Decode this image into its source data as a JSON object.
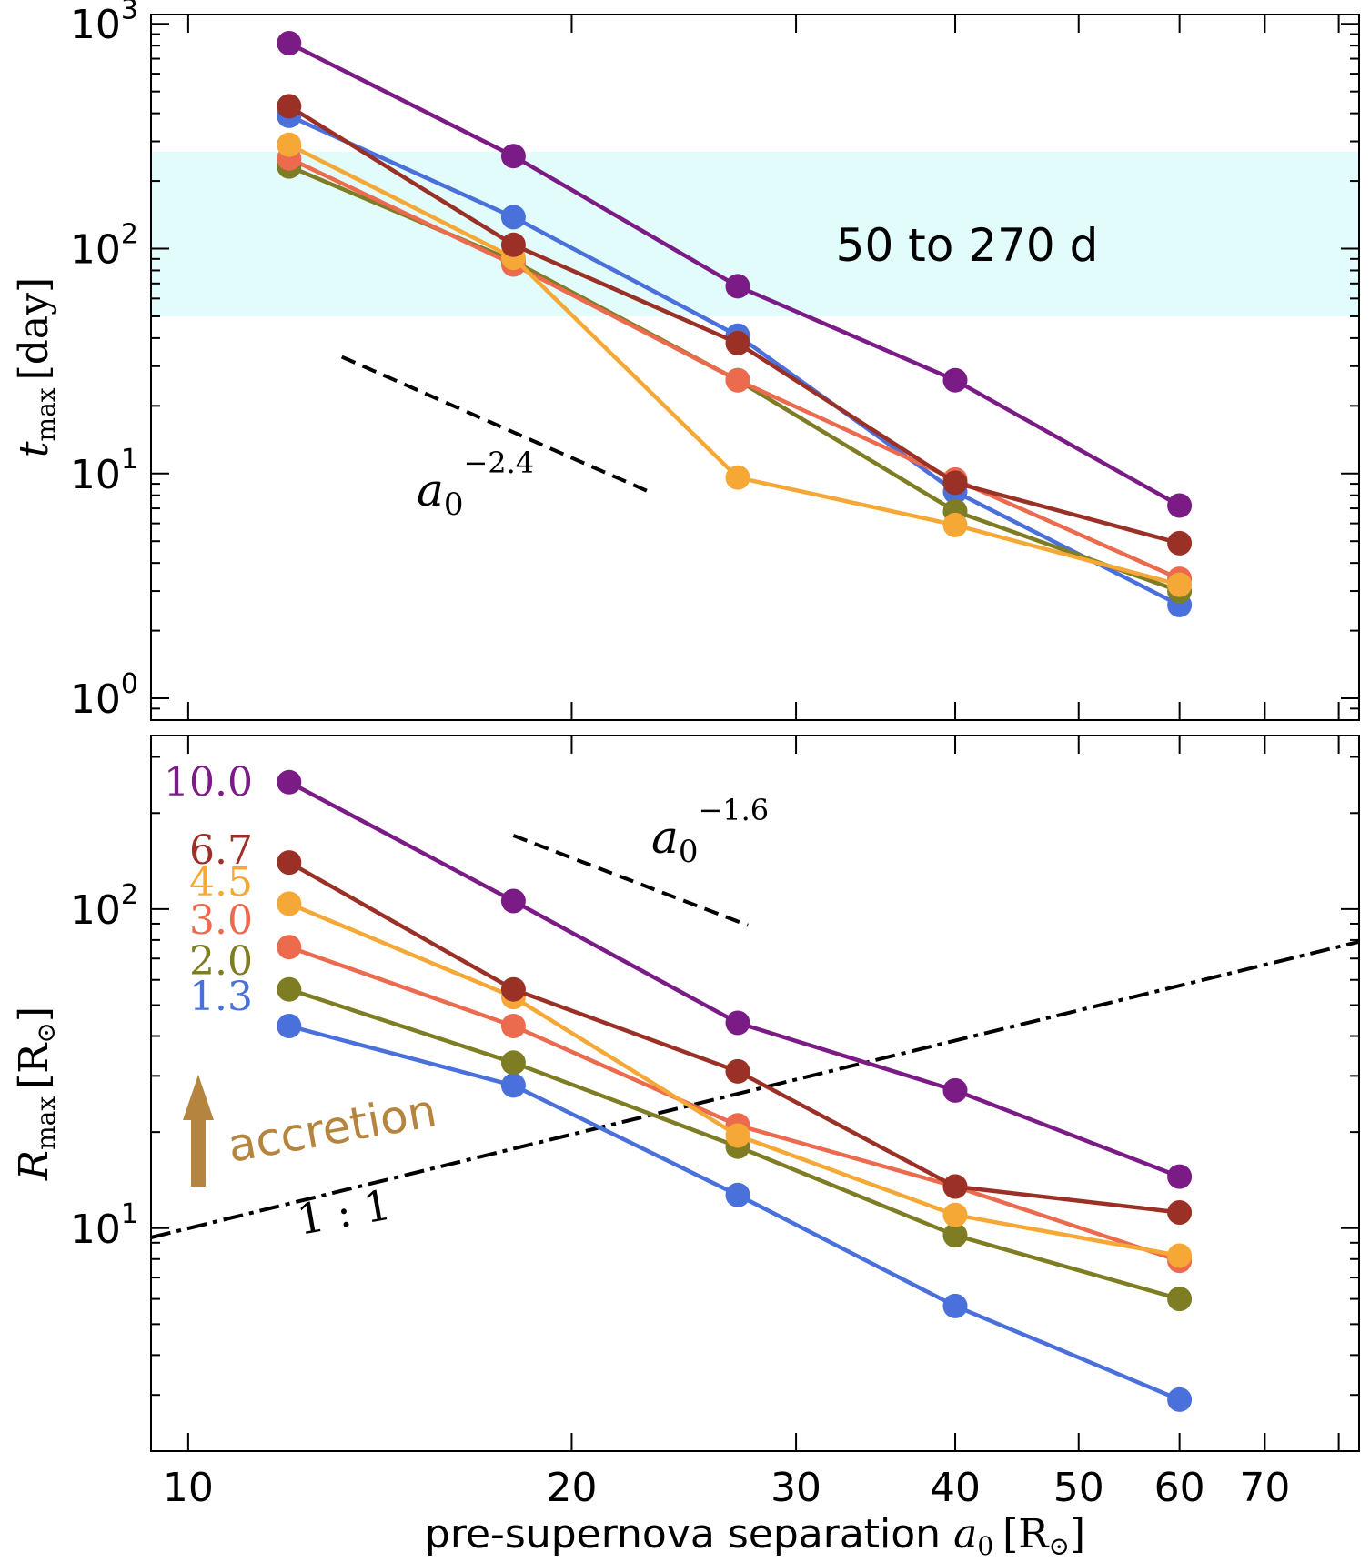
{
  "chart_data": [
    {
      "type": "line",
      "panel": "top",
      "ylabel": "t",
      "ylabel_sub": "max",
      "ylabel_unit": "[day]",
      "yscale": "log",
      "xscale": "log",
      "ylim": [
        0.8,
        1100
      ],
      "xlim": [
        9.35,
        83
      ],
      "y_tick_labels": [
        {
          "value": 1,
          "base": "10",
          "exp": "0"
        },
        {
          "value": 10,
          "base": "10",
          "exp": "1"
        },
        {
          "value": 100,
          "base": "10",
          "exp": "2"
        },
        {
          "value": 1000,
          "base": "10",
          "exp": "3"
        }
      ],
      "band": {
        "y_range": [
          50,
          270
        ],
        "label": "50 to 270 d",
        "color": "#e2fbfb"
      },
      "slope_guide": {
        "base": "a",
        "sub": "0",
        "exp": "−2.4",
        "x": [
          13.2,
          23.0
        ],
        "y": [
          33,
          8.3
        ]
      },
      "x": [
        12,
        18,
        27,
        40,
        60
      ],
      "series": [
        {
          "name": "1.3",
          "color": "#4a70dc",
          "values": [
            390,
            138,
            41,
            8.3,
            2.6
          ]
        },
        {
          "name": "2.0",
          "color": "#7e7d24",
          "values": [
            232,
            88,
            26,
            6.8,
            3.0
          ]
        },
        {
          "name": "3.0",
          "color": "#ec6a4e",
          "values": [
            252,
            85,
            26,
            9.4,
            3.4
          ]
        },
        {
          "name": "4.5",
          "color": "#f5a836",
          "values": [
            290,
            91,
            9.6,
            5.9,
            3.2
          ]
        },
        {
          "name": "6.7",
          "color": "#9a3026",
          "values": [
            430,
            104,
            38,
            9.1,
            4.9
          ]
        },
        {
          "name": "10.0",
          "color": "#7b1b86",
          "values": [
            820,
            258,
            68,
            26,
            7.2
          ]
        }
      ]
    },
    {
      "type": "line",
      "panel": "bottom",
      "ylabel": "R",
      "ylabel_sub": "max",
      "ylabel_unit": "[R",
      "ylabel_sun": "⊙",
      "ylabel_close": "]",
      "yscale": "log",
      "xscale": "log",
      "ylim": [
        2.0,
        350
      ],
      "xlim": [
        9.35,
        83
      ],
      "y_tick_labels": [
        {
          "value": 10,
          "base": "10",
          "exp": "1"
        },
        {
          "value": 100,
          "base": "10",
          "exp": "2"
        }
      ],
      "x_tick_labels": [
        "10",
        "20",
        "30",
        "40",
        "50",
        "60",
        "70"
      ],
      "x_ticks": [
        10,
        20,
        30,
        40,
        50,
        60,
        70
      ],
      "xlabel": "pre-supernova separation",
      "xlabel_var": "a",
      "xlabel_sub": "0",
      "xlabel_unit": "[R",
      "xlabel_sun": "⊙",
      "xlabel_close": "]",
      "slope_guide": {
        "base": "a",
        "sub": "0",
        "exp": "−1.6",
        "x": [
          18.0,
          27.5
        ],
        "y": [
          170,
          89
        ]
      },
      "one_to_one": {
        "label": "1 : 1",
        "x": [
          9.35,
          83
        ],
        "y": [
          9.35,
          79
        ]
      },
      "accretion": {
        "label": "accretion",
        "color": "#b5843e"
      },
      "x": [
        12,
        18,
        27,
        40,
        60
      ],
      "series": [
        {
          "name": "1.3",
          "color": "#4a70dc",
          "values": [
            43,
            28,
            12.7,
            5.7,
            2.9
          ]
        },
        {
          "name": "2.0",
          "color": "#7e7d24",
          "values": [
            56,
            33,
            18,
            9.5,
            6.0
          ]
        },
        {
          "name": "3.0",
          "color": "#ec6a4e",
          "values": [
            76,
            43,
            21,
            13.5,
            7.9
          ]
        },
        {
          "name": "4.5",
          "color": "#f5a836",
          "values": [
            104,
            53,
            19.5,
            11,
            8.2
          ]
        },
        {
          "name": "6.7",
          "color": "#9a3026",
          "values": [
            140,
            56,
            31,
            13.5,
            11.2
          ]
        },
        {
          "name": "10.0",
          "color": "#7b1b86",
          "values": [
            250,
            106,
            44,
            27,
            14.5
          ]
        }
      ]
    }
  ]
}
